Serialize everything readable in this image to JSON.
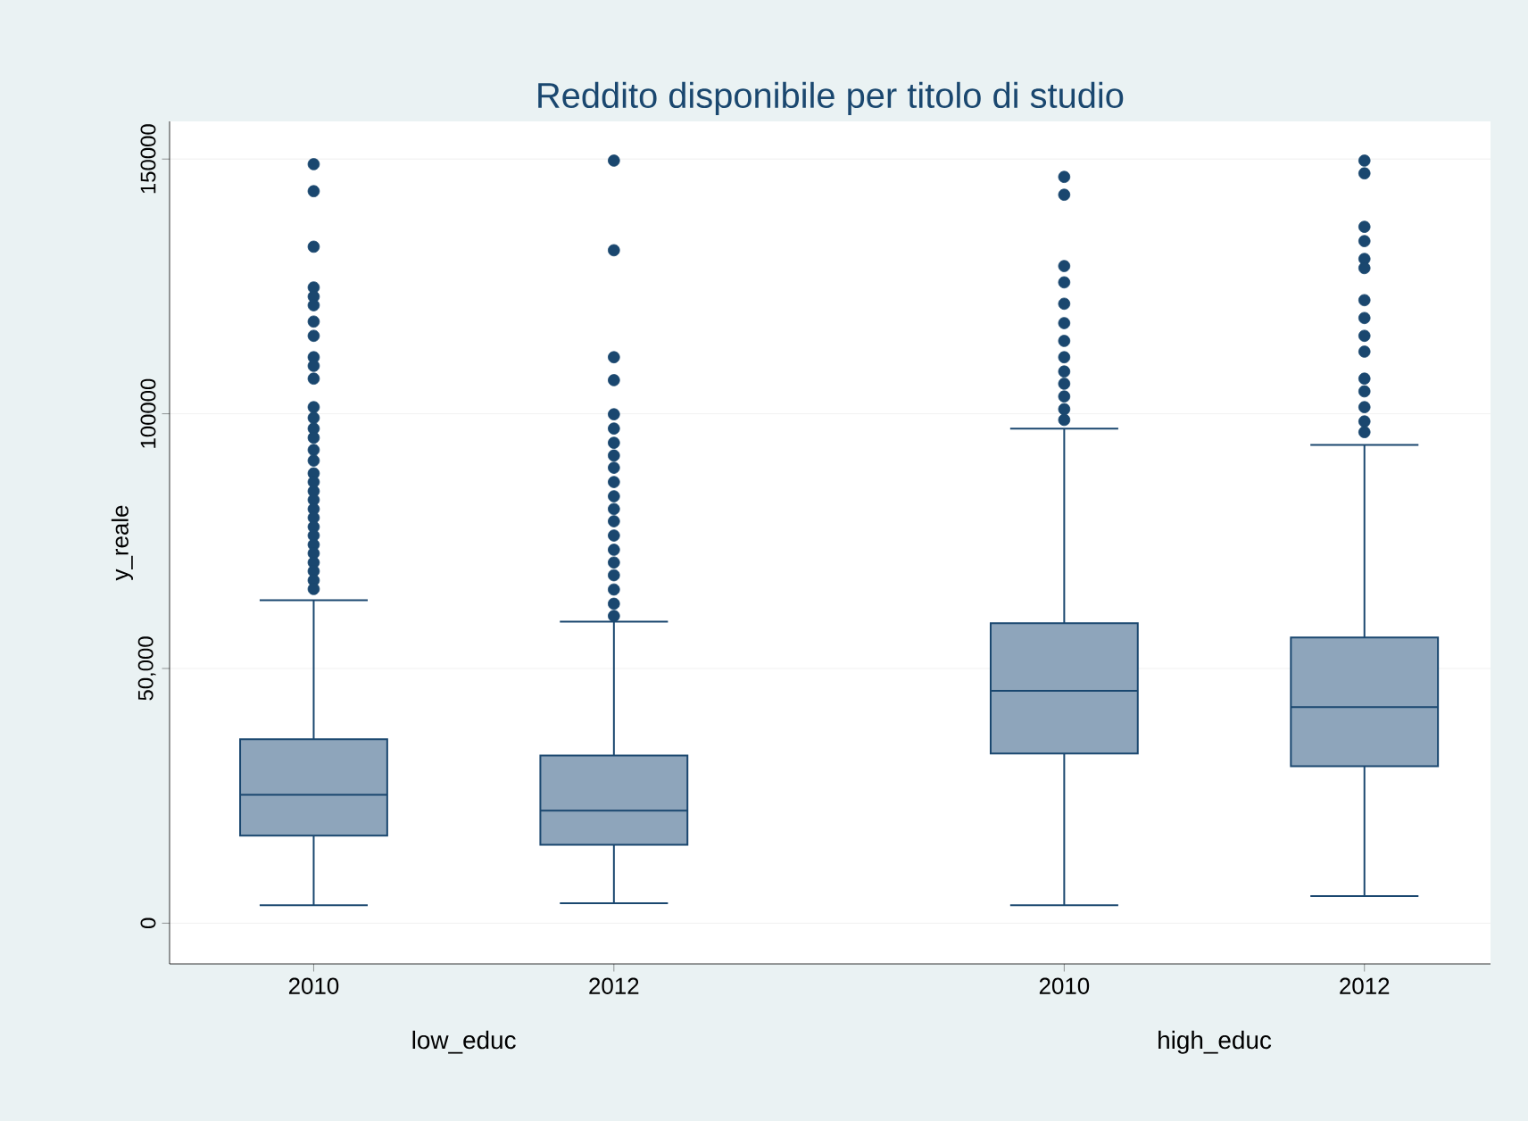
{
  "chart_data": {
    "type": "box",
    "title": "Reddito disponibile per titolo di studio",
    "ylabel": "y_reale",
    "categories": [
      "2010",
      "2012",
      "2010",
      "2012"
    ],
    "annotations": [
      "low_educ",
      "high_educ"
    ],
    "color": "#8ea5bb",
    "ylim": [
      -8000,
      157400
    ],
    "yticks": [
      0,
      {
        "value": 50000,
        "label": "50,000"
      },
      100000,
      150000
    ],
    "grid": "y",
    "boxes": [
      {
        "low": 3500,
        "q1": 17200,
        "median": 25200,
        "q3": 36100,
        "high": 63400,
        "outliers": [
          149000,
          143700,
          132800,
          124800,
          123000,
          121300,
          118100,
          115300,
          111100,
          109400,
          106900,
          101300,
          99200,
          97100,
          95300,
          92900,
          90800,
          88300,
          86600,
          84800,
          83100,
          81300,
          79600,
          77800,
          76100,
          74300,
          72600,
          70800,
          69100,
          67300,
          65600
        ]
      },
      {
        "low": 3900,
        "q1": 15400,
        "median": 22100,
        "q3": 32900,
        "high": 59200,
        "outliers": [
          149700,
          132100,
          111100,
          106600,
          99900,
          97100,
          94300,
          91800,
          89400,
          86600,
          83800,
          81300,
          78900,
          76100,
          73300,
          70800,
          68300,
          65500,
          62700,
          60300
        ]
      },
      {
        "low": 3500,
        "q1": 33300,
        "median": 45600,
        "q3": 58900,
        "high": 97100,
        "outliers": [
          146500,
          143000,
          129000,
          125800,
          121600,
          117800,
          114300,
          111100,
          108300,
          105900,
          103400,
          100900,
          98800
        ]
      },
      {
        "low": 5300,
        "q1": 30800,
        "median": 42400,
        "q3": 56100,
        "high": 93900,
        "outliers": [
          149700,
          147200,
          136700,
          133900,
          130400,
          128600,
          122300,
          118800,
          115300,
          112200,
          106900,
          104400,
          101300,
          98500,
          96400
        ]
      }
    ]
  }
}
